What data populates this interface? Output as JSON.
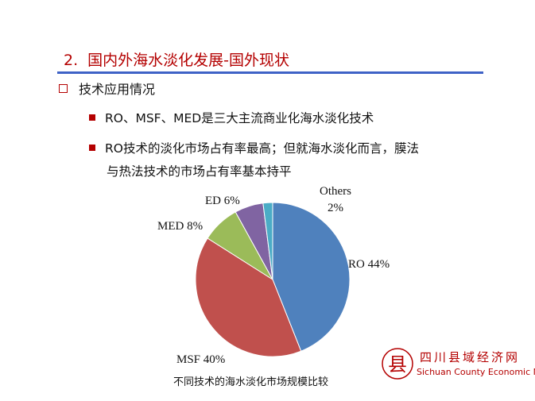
{
  "slide": {
    "title_number": "2.",
    "title_text": "国内外海水淡化发展-国外现状",
    "bullet_main": "技术应用情况",
    "sub_bullets": [
      "RO、MSF、MED是三大主流商业化海水淡化技术",
      "RO技术的淡化市场占有率最高；但就海水淡化而言，膜法"
    ],
    "sub_bullet_continuation": "与热法技术的市场占有率基本持平",
    "caption": "不同技术的海水淡化市场规模比较"
  },
  "watermark": {
    "logo_char": "县",
    "name_cn": "四川县域经济网",
    "name_en": "Sichuan County Economic Net"
  },
  "colors": {
    "title_red": "#b40000",
    "rule_blue": "#3e62c6"
  },
  "chart_data": {
    "type": "pie",
    "title": "",
    "slices": [
      {
        "label": "RO 44%",
        "value": 44,
        "color": "#4f81bd"
      },
      {
        "label": "MSF 40%",
        "value": 40,
        "color": "#c0504d"
      },
      {
        "label": "MED 8%",
        "value": 8,
        "color": "#9bbb59"
      },
      {
        "label": "ED 6%",
        "value": 6,
        "color": "#8064a2"
      },
      {
        "label": "Others 2%",
        "value": 2,
        "color": "#4bacc6"
      }
    ],
    "order": "clockwise from top"
  }
}
